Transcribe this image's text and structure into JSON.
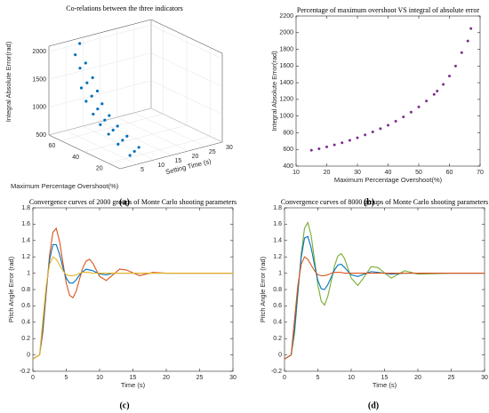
{
  "chart_data": [
    {
      "type": "scatter3d",
      "title": "Co-relations between the three indicators",
      "caption": "(a)",
      "xlabel": "Maximum Percentage Overshoot(%)",
      "ylabel": "Setting Time (s)",
      "zlabel": "Integral Absolute Error(rad)",
      "color": "#0072bd",
      "x": [
        16,
        18,
        20,
        26,
        28,
        30,
        34,
        36,
        38,
        41,
        43,
        45,
        47,
        49,
        51,
        53,
        54,
        55,
        57,
        58,
        59,
        61,
        62,
        65,
        67
      ],
      "y": [
        5,
        7,
        9,
        5,
        7,
        9,
        5,
        7,
        9,
        5,
        7,
        9,
        5,
        7,
        9,
        5,
        7,
        9,
        5,
        7,
        9,
        6,
        8,
        6,
        8
      ],
      "z": [
        600,
        620,
        640,
        700,
        720,
        740,
        800,
        820,
        840,
        900,
        930,
        960,
        1030,
        1070,
        1110,
        1200,
        1250,
        1300,
        1400,
        1450,
        1500,
        1700,
        1750,
        1900,
        2050
      ],
      "xlim": [
        10,
        70
      ],
      "xticks": [
        20,
        40,
        60
      ],
      "ylim": [
        0,
        30
      ],
      "yticks": [
        5,
        10,
        15,
        20,
        25,
        30
      ],
      "zlim": [
        500,
        2100
      ],
      "zticks": [
        500,
        1000,
        1500,
        2000
      ],
      "grid": true
    },
    {
      "type": "scatter",
      "title": "Percentage of maximum overshoot VS integral of absolute error",
      "caption": "(b)",
      "xlabel": "Maximum Percentage Overshoot(%)",
      "ylabel": "Integral Absolute Error(rad)",
      "color": "#7e2f8e",
      "x": [
        15,
        17.5,
        20,
        22.5,
        25,
        27.5,
        30,
        32.5,
        35,
        37.5,
        40,
        42.5,
        45,
        47.5,
        50,
        52.5,
        55,
        56,
        58,
        60,
        62,
        64,
        66,
        67
      ],
      "values": [
        590,
        608,
        630,
        654,
        680,
        709,
        740,
        774,
        810,
        849,
        890,
        938,
        990,
        1047,
        1110,
        1180,
        1260,
        1300,
        1380,
        1480,
        1600,
        1760,
        1900,
        2050
      ],
      "xlim": [
        10,
        70
      ],
      "xticks": [
        10,
        20,
        30,
        40,
        50,
        60,
        70
      ],
      "ylim": [
        400,
        2200
      ],
      "yticks": [
        400,
        600,
        800,
        1000,
        1200,
        1400,
        1600,
        1800,
        2000,
        2200
      ]
    },
    {
      "type": "line",
      "title": "Convergence curves of 2000 groups of Monte Carlo shooting parameters",
      "caption": "(c)",
      "xlabel": "Time (s)",
      "ylabel": "Pitch Angle Error (rad)",
      "x": [
        0,
        1,
        1.5,
        2,
        2.5,
        3,
        3.5,
        4,
        4.5,
        5,
        5.5,
        6,
        6.5,
        7,
        7.5,
        8,
        8.5,
        9,
        10,
        11,
        12,
        13,
        14,
        16,
        18,
        20,
        25,
        30
      ],
      "series": [
        {
          "color": "#d95319",
          "values": [
            -0.05,
            0,
            0.28,
            0.76,
            1.22,
            1.5,
            1.55,
            1.39,
            1.13,
            0.88,
            0.73,
            0.7,
            0.78,
            0.93,
            1.07,
            1.15,
            1.17,
            1.12,
            0.96,
            0.91,
            0.98,
            1.05,
            1.04,
            0.97,
            1.01,
            1,
            1,
            1
          ]
        },
        {
          "color": "#0072bd",
          "values": [
            -0.05,
            0,
            0.34,
            0.8,
            1.16,
            1.35,
            1.35,
            1.23,
            1.07,
            0.94,
            0.88,
            0.88,
            0.92,
            0.98,
            1.02,
            1.05,
            1.04,
            1.03,
            0.99,
            0.98,
            1,
            1,
            1,
            1,
            1,
            1,
            1,
            1
          ]
        },
        {
          "color": "#edb120",
          "values": [
            -0.05,
            0,
            0.43,
            0.85,
            1.11,
            1.2,
            1.17,
            1.1,
            1.03,
            0.98,
            0.97,
            0.97,
            0.98,
            1,
            1.01,
            1.01,
            1.01,
            1,
            1,
            1,
            1,
            1,
            1,
            1,
            1,
            1,
            1,
            1
          ]
        }
      ],
      "xlim": [
        0,
        30
      ],
      "xticks": [
        0,
        5,
        10,
        15,
        20,
        25,
        30
      ],
      "ylim": [
        -0.2,
        1.8
      ],
      "yticks": [
        -0.2,
        0,
        0.2,
        0.4,
        0.6,
        0.8,
        1,
        1.2,
        1.4,
        1.6,
        1.8
      ]
    },
    {
      "type": "line",
      "title": "Convergence curves of 8000 groups of Monte Carlo shooting parameters",
      "caption": "(d)",
      "xlabel": "Time (s)",
      "ylabel": "Pitch Angle Error (rad)",
      "x": [
        0,
        1,
        1.5,
        2,
        2.5,
        3,
        3.5,
        4,
        4.5,
        5,
        5.5,
        6,
        6.5,
        7,
        7.5,
        8,
        8.5,
        9,
        10,
        11,
        12,
        13,
        14,
        16,
        18,
        20,
        25,
        30
      ],
      "series": [
        {
          "color": "#77ac30",
          "values": [
            -0.05,
            0,
            0.26,
            0.74,
            1.23,
            1.55,
            1.62,
            1.46,
            1.16,
            0.86,
            0.66,
            0.61,
            0.72,
            0.9,
            1.09,
            1.21,
            1.24,
            1.18,
            0.94,
            0.85,
            0.96,
            1.08,
            1.07,
            0.94,
            1.03,
            0.99,
            1,
            1
          ]
        },
        {
          "color": "#0072bd",
          "values": [
            -0.05,
            0,
            0.31,
            0.78,
            1.19,
            1.43,
            1.45,
            1.31,
            1.1,
            0.91,
            0.81,
            0.8,
            0.86,
            0.95,
            1.04,
            1.1,
            1.11,
            1.07,
            0.98,
            0.96,
            0.99,
            1.02,
            1.01,
            0.99,
            1,
            1,
            1,
            1
          ]
        },
        {
          "color": "#d95319",
          "values": [
            -0.05,
            0,
            0.43,
            0.85,
            1.11,
            1.2,
            1.17,
            1.1,
            1.03,
            0.98,
            0.97,
            0.97,
            0.98,
            1,
            1.01,
            1.01,
            1.01,
            1,
            1,
            1,
            1,
            1,
            1,
            1,
            1,
            1,
            1,
            1
          ]
        }
      ],
      "xlim": [
        0,
        30
      ],
      "xticks": [
        0,
        5,
        10,
        15,
        20,
        25,
        30
      ],
      "ylim": [
        -0.2,
        1.8
      ],
      "yticks": [
        -0.2,
        0,
        0.2,
        0.4,
        0.6,
        0.8,
        1,
        1.2,
        1.4,
        1.6,
        1.8
      ]
    }
  ]
}
